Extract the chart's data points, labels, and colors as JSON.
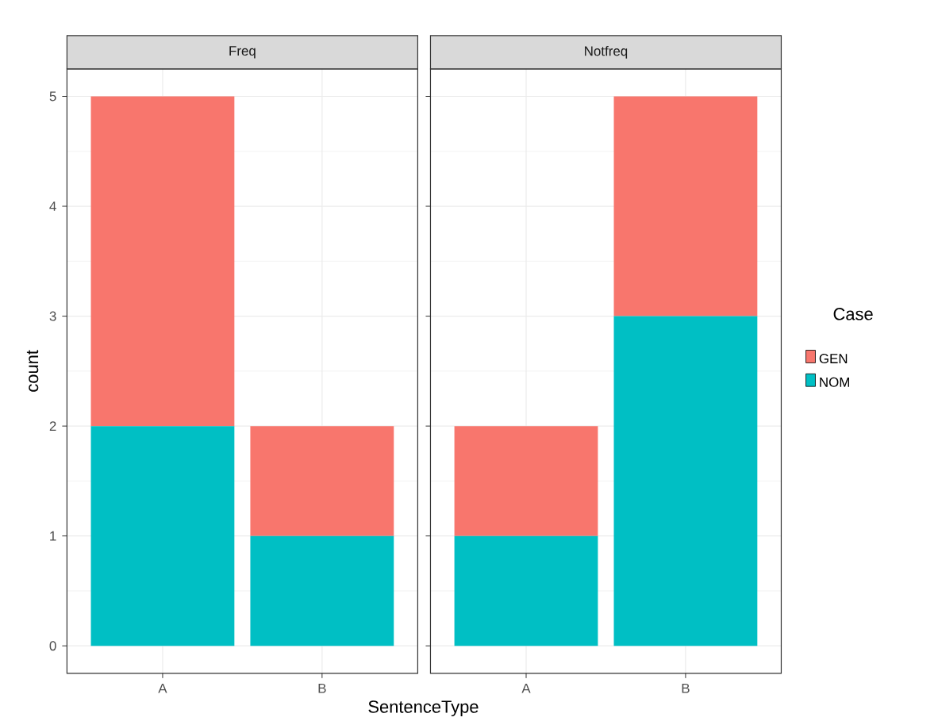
{
  "chart_data": [
    {
      "type": "bar",
      "title": "Freq",
      "xlabel": "SentenceType",
      "ylabel": "count",
      "categories": [
        "A",
        "B"
      ],
      "stacked": true,
      "series": [
        {
          "color": "#00bfc4",
          "values": [
            2,
            1
          ]
        },
        {
          "color": "#f8766d",
          "values": [
            3,
            1
          ]
        }
      ],
      "ylim": [
        -0.25,
        5.25
      ],
      "yticks": [
        0,
        1,
        2,
        3,
        4,
        5
      ],
      "grid": true
    },
    {
      "type": "bar",
      "title": "Notfreq",
      "categories": [
        "A",
        "B"
      ],
      "stacked": true,
      "legend_title": "Case",
      "legend": "right",
      "series": [
        {
          "name": "NOM",
          "color": "#00bfc4",
          "values": [
            1,
            3
          ]
        },
        {
          "name": "GEN",
          "color": "#f8766d",
          "values": [
            1,
            2
          ]
        }
      ],
      "ylim": [
        -0.25,
        5.25
      ],
      "yticks": [
        0,
        1,
        2,
        3,
        4,
        5
      ],
      "grid": true,
      "tick_labels": "x"
    }
  ]
}
